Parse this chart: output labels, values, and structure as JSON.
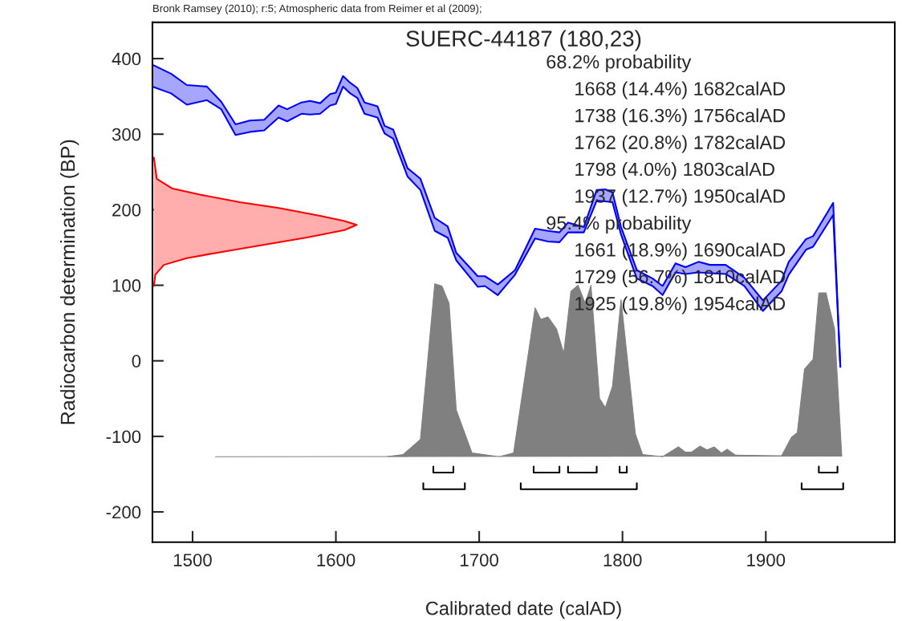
{
  "chart_data": {
    "type": "line",
    "title": "SUERC-44187 (180,23)",
    "xlabel": "Calibrated date (calAD)",
    "ylabel": "Radiocarbon determination (BP)",
    "xlim": [
      1472,
      1990
    ],
    "ylim": [
      -240,
      448
    ],
    "xticks": [
      1500,
      1600,
      1700,
      1800,
      1900
    ],
    "yticks": [
      -200,
      -100,
      0,
      100,
      200,
      300,
      400
    ],
    "grid": false,
    "series": [
      {
        "type": "area",
        "color": "#ff0000",
        "x": [
          1473,
          1475,
          1486,
          1505,
          1533,
          1561,
          1589,
          1606,
          1614.5,
          1606,
          1579,
          1551,
          1523,
          1496,
          1480,
          1474,
          1473
        ],
        "values": [
          269,
          241,
          228,
          220,
          210,
          202,
          192,
          185,
          180,
          173,
          163,
          154,
          145,
          136,
          127,
          114,
          99
        ]
      },
      {
        "color": "#0000ff",
        "x": [
          1472,
          1485,
          1496,
          1510,
          1520,
          1530,
          1540,
          1550,
          1560,
          1566,
          1576,
          1582,
          1589,
          1596,
          1600,
          1605,
          1610,
          1615,
          1620,
          1629,
          1634,
          1640,
          1650,
          1659,
          1669,
          1678,
          1684,
          1699,
          1704,
          1713,
          1725,
          1739,
          1748,
          1756,
          1762,
          1773,
          1782,
          1788,
          1793,
          1799,
          1810,
          1821,
          1828,
          1837,
          1844,
          1853,
          1861,
          1872,
          1885,
          1898,
          1911,
          1916,
          1928,
          1933,
          1947,
          1952
        ],
        "values": [
          392,
          380,
          365,
          363,
          343,
          313,
          318,
          319,
          338,
          333,
          342,
          344,
          341,
          353,
          355,
          377,
          368,
          361,
          342,
          337,
          311,
          306,
          255,
          241,
          189,
          178,
          143,
          112,
          112,
          101,
          120,
          175,
          172,
          170,
          183,
          177,
          226,
          227,
          223,
          177,
          120,
          109,
          99,
          129,
          124,
          131,
          127,
          127,
          110,
          80,
          106,
          131,
          161,
          165,
          209,
          -8
        ],
        "upper": [
          392,
          380,
          365,
          363,
          343,
          313,
          318,
          319,
          338,
          333,
          342,
          344,
          341,
          353,
          355,
          377,
          368,
          361,
          342,
          337,
          311,
          306,
          255,
          241,
          189,
          178,
          143,
          112,
          112,
          101,
          120,
          175,
          172,
          170,
          183,
          177,
          226,
          227,
          223,
          177,
          120,
          109,
          99,
          129,
          124,
          131,
          127,
          127,
          110,
          80,
          106,
          131,
          161,
          165,
          209,
          -8
        ],
        "lower": [
          363,
          354,
          339,
          345,
          333,
          299,
          303,
          305,
          322,
          317,
          327,
          326,
          327,
          338,
          340,
          363,
          354,
          348,
          327,
          322,
          301,
          294,
          244,
          226,
          172,
          163,
          133,
          98,
          99,
          87,
          114,
          162,
          158,
          157,
          170,
          170,
          212,
          211,
          210,
          167,
          109,
          99,
          87,
          117,
          115,
          117,
          116,
          115,
          99,
          66,
          92,
          114,
          147,
          151,
          193,
          -8
        ]
      },
      {
        "type": "line",
        "color": "#0000ff",
        "x": [
          1472,
          1485,
          1496,
          1510,
          1520,
          1530,
          1540,
          1550,
          1560,
          1566,
          1576,
          1582,
          1589,
          1596,
          1600,
          1605,
          1610,
          1615,
          1620,
          1629,
          1634,
          1640,
          1650,
          1659,
          1669,
          1678,
          1684,
          1699,
          1704,
          1713,
          1725,
          1739,
          1748,
          1756,
          1762,
          1773,
          1782,
          1788,
          1793,
          1799,
          1810,
          1821,
          1828,
          1837,
          1844,
          1853,
          1861,
          1872,
          1885,
          1898,
          1911,
          1916,
          1928,
          1933,
          1947,
          1952
        ],
        "values": [
          363,
          354,
          339,
          345,
          333,
          299,
          303,
          305,
          322,
          317,
          327,
          326,
          327,
          338,
          340,
          363,
          354,
          348,
          327,
          322,
          301,
          294,
          244,
          226,
          172,
          163,
          133,
          98,
          99,
          87,
          114,
          162,
          158,
          157,
          170,
          170,
          212,
          211,
          210,
          167,
          109,
          99,
          87,
          117,
          115,
          117,
          116,
          115,
          99,
          66,
          92,
          114,
          147,
          151,
          193,
          -8
        ]
      },
      {
        "type": "area",
        "color": "#808080",
        "x": [
          1516,
          1635,
          1647,
          1659,
          1669,
          1674,
          1679,
          1684,
          1695,
          1714,
          1724,
          1739,
          1743,
          1748,
          1754,
          1759,
          1764,
          1769,
          1774,
          1778,
          1784,
          1788,
          1793,
          1799,
          1809,
          1814,
          1828,
          1839,
          1844,
          1848,
          1854,
          1859,
          1864,
          1869,
          1873,
          1879,
          1911,
          1918,
          1922,
          1927,
          1933,
          1937,
          1942,
          1948,
          1953
        ],
        "values": [
          -127,
          -127,
          -124,
          -104,
          102,
          99,
          76,
          -65,
          -122,
          -127,
          -122,
          70,
          55,
          58,
          42,
          10,
          92,
          100,
          76,
          100,
          -50,
          -62,
          -34,
          81,
          -97,
          -124,
          -127,
          -114,
          -121,
          -121,
          -113,
          -118,
          -114,
          -122,
          -117,
          -125,
          -126,
          -101,
          -95,
          -11,
          2,
          90,
          90,
          42,
          -126
        ]
      },
      {
        "type": "line",
        "color": "#000000",
        "x": [
          1668,
          1668,
          1682,
          1682,
          null,
          1738,
          1738,
          1756,
          1756,
          null,
          1762,
          1762,
          1782,
          1782,
          null,
          1798,
          1798,
          1803,
          1803,
          null,
          1937,
          1937,
          1950,
          1950
        ],
        "values": [
          -140,
          -148,
          -148,
          -140,
          null,
          -140,
          -148,
          -148,
          -140,
          null,
          -140,
          -148,
          -148,
          -140,
          null,
          -140,
          -148,
          -148,
          -140,
          null,
          -140,
          -148,
          -148,
          -140
        ]
      },
      {
        "type": "line",
        "color": "#000000",
        "x": [
          1661,
          1661,
          1690,
          1690,
          null,
          1729,
          1729,
          1810,
          1810,
          null,
          1925,
          1925,
          1954,
          1954
        ],
        "values": [
          -162,
          -170,
          -170,
          -162,
          null,
          -162,
          -170,
          -170,
          -162,
          null,
          -162,
          -170,
          -170,
          -162
        ]
      }
    ],
    "annotations": [
      "Bronk Ramsey (2010); r:5; Atmospheric data from Reimer et al (2009);",
      "68.2% probability",
      "1668 (14.4%) 1682calAD",
      "1738 (16.3%) 1756calAD",
      "1762 (20.8%) 1782calAD",
      "1798 (4.0%) 1803calAD",
      "1937 (12.7%) 1950calAD",
      "95.4% probability",
      "1661 (18.9%) 1690calAD",
      "1729 (56.7%) 1810calAD",
      "1925 (19.8%) 1954calAD"
    ]
  }
}
